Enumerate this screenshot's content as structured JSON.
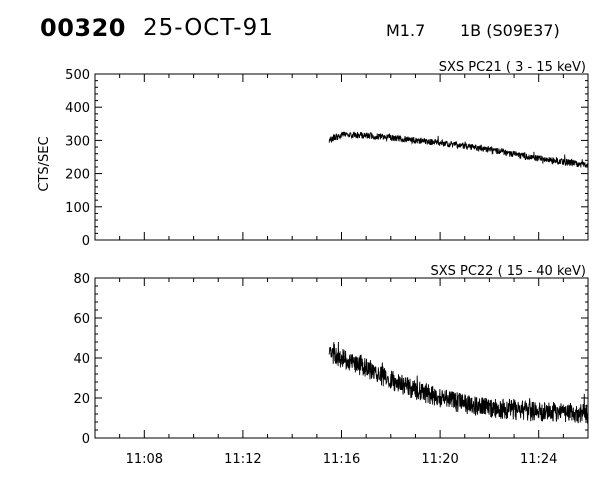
{
  "header": {
    "event_id": "00320",
    "date": "25-OCT-91",
    "flare_class": "M1.7",
    "flare_region": "1B (S09E37)"
  },
  "chart_data": [
    {
      "type": "line",
      "title": "SXS PC21  (  3 - 15 keV)",
      "xlabel": "",
      "ylabel": "CTS/SEC",
      "xlim": [
        "11:06",
        "11:26"
      ],
      "ylim": [
        0,
        500
      ],
      "yticks": [
        0,
        100,
        200,
        300,
        400,
        500
      ],
      "xticks": [
        "11:08",
        "11:12",
        "11:16",
        "11:20",
        "11:24"
      ],
      "show_x_tick_labels": false,
      "grid": false,
      "noise": 10,
      "series": [
        {
          "x": [
            "11:15.5",
            "11:16",
            "11:17",
            "11:18",
            "11:19",
            "11:20",
            "11:21",
            "11:22",
            "11:23",
            "11:24",
            "11:25",
            "11:26"
          ],
          "values": [
            300,
            318,
            315,
            308,
            300,
            292,
            283,
            272,
            258,
            245,
            235,
            225
          ]
        }
      ]
    },
    {
      "type": "line",
      "title": "SXS PC22  ( 15 - 40 keV)",
      "xlabel": "",
      "ylabel": "",
      "xlim": [
        "11:06",
        "11:26"
      ],
      "ylim": [
        0,
        80
      ],
      "yticks": [
        0,
        20,
        40,
        60,
        80
      ],
      "xticks": [
        "11:08",
        "11:12",
        "11:16",
        "11:20",
        "11:24"
      ],
      "show_x_tick_labels": true,
      "grid": false,
      "noise": 5,
      "series": [
        {
          "x": [
            "11:15.5",
            "11:16",
            "11:17",
            "11:18",
            "11:19",
            "11:20",
            "11:21",
            "11:22",
            "11:23",
            "11:24",
            "11:25",
            "11:26"
          ],
          "values": [
            42,
            40,
            35,
            29,
            24,
            20,
            17,
            15,
            14,
            13,
            13,
            12
          ]
        }
      ]
    }
  ]
}
